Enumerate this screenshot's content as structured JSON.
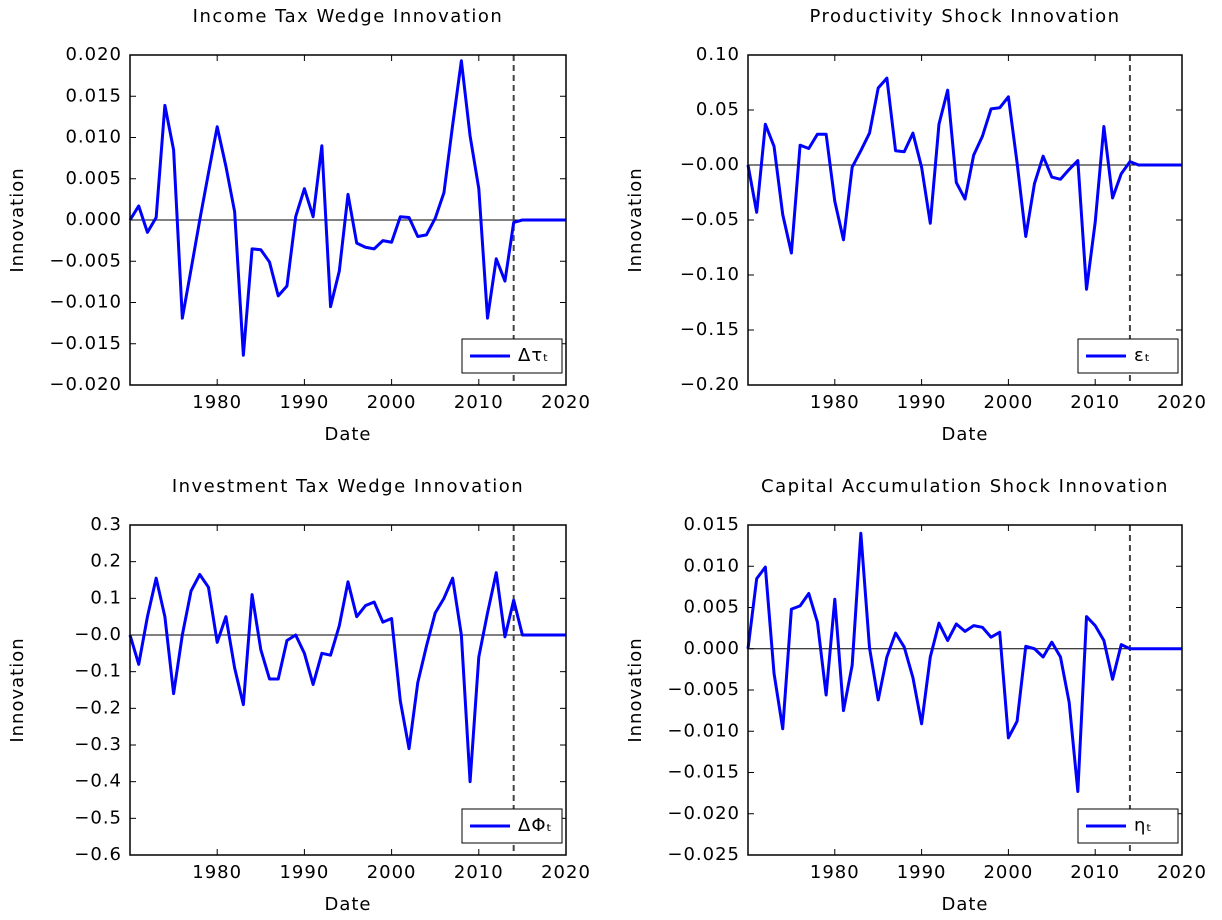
{
  "chart_data": [
    {
      "type": "line",
      "title": "Income Tax Wedge Innovation",
      "xlabel": "Date",
      "ylabel": "Innovation",
      "x": [
        1970,
        1971,
        1972,
        1973,
        1974,
        1975,
        1976,
        1977,
        1978,
        1979,
        1980,
        1981,
        1982,
        1983,
        1984,
        1985,
        1986,
        1987,
        1988,
        1989,
        1990,
        1991,
        1992,
        1993,
        1994,
        1995,
        1996,
        1997,
        1998,
        1999,
        2000,
        2001,
        2002,
        2003,
        2004,
        2005,
        2006,
        2007,
        2008,
        2009,
        2010,
        2011,
        2012,
        2013,
        2014,
        2015,
        2016,
        2017,
        2018,
        2019,
        2020
      ],
      "series": [
        {
          "name": "Δτₜ",
          "color": "#0000ff",
          "values": [
            0.0,
            0.0017,
            -0.0015,
            0.0003,
            0.0139,
            0.0085,
            -0.0119,
            -0.006,
            0.0,
            0.0057,
            0.0113,
            0.0065,
            0.001,
            -0.0164,
            -0.0035,
            -0.0036,
            -0.0051,
            -0.0092,
            -0.008,
            0.0004,
            0.0038,
            0.0004,
            0.009,
            -0.0105,
            -0.0062,
            0.0031,
            -0.0028,
            -0.0033,
            -0.0035,
            -0.0025,
            -0.0027,
            0.0004,
            0.0003,
            -0.002,
            -0.0018,
            0.0002,
            0.0033,
            0.0115,
            0.0193,
            0.0102,
            0.0038,
            -0.0119,
            -0.0047,
            -0.0074,
            -0.0003,
            0,
            0,
            0,
            0,
            0,
            0
          ]
        }
      ],
      "xlim": [
        1970,
        2020
      ],
      "xticks": [
        1980,
        1990,
        2000,
        2010,
        2020
      ],
      "ylim": [
        -0.02,
        0.02
      ],
      "yticks": [
        {
          "value": -0.02,
          "label": "−0.020"
        },
        {
          "value": -0.015,
          "label": "−0.015"
        },
        {
          "value": -0.01,
          "label": "−0.010"
        },
        {
          "value": -0.005,
          "label": "−0.005"
        },
        {
          "value": 0,
          "label": "0.000"
        },
        0.005,
        {
          "value": 0.01,
          "label": "0.010"
        },
        0.015,
        {
          "value": 0.02,
          "label": "0.020"
        }
      ],
      "hline": 0,
      "vline": 2014,
      "legend": "lower right"
    },
    {
      "type": "line",
      "title": "Productivity Shock Innovation",
      "xlabel": "Date",
      "ylabel": "Innovation",
      "x": [
        1970,
        1971,
        1972,
        1973,
        1974,
        1975,
        1976,
        1977,
        1978,
        1979,
        1980,
        1981,
        1982,
        1983,
        1984,
        1985,
        1986,
        1987,
        1988,
        1989,
        1990,
        1991,
        1992,
        1993,
        1994,
        1995,
        1996,
        1997,
        1998,
        1999,
        2000,
        2001,
        2002,
        2003,
        2004,
        2005,
        2006,
        2007,
        2008,
        2009,
        2010,
        2011,
        2012,
        2013,
        2014,
        2015,
        2016,
        2017,
        2018,
        2019,
        2020
      ],
      "series": [
        {
          "name": "εₜ",
          "color": "#0000ff",
          "values": [
            0.0,
            -0.043,
            0.037,
            0.017,
            -0.045,
            -0.08,
            0.018,
            0.015,
            0.028,
            0.028,
            -0.033,
            -0.068,
            -0.002,
            0.013,
            0.029,
            0.07,
            0.079,
            0.013,
            0.012,
            0.029,
            -0.002,
            -0.053,
            0.037,
            0.068,
            -0.016,
            -0.031,
            0.009,
            0.026,
            0.051,
            0.052,
            0.062,
            0.002,
            -0.065,
            -0.017,
            0.008,
            -0.011,
            -0.013,
            -0.004,
            0.004,
            -0.113,
            -0.052,
            0.035,
            -0.03,
            -0.008,
            0.003,
            0,
            0,
            0,
            0,
            0,
            0
          ]
        }
      ],
      "xlim": [
        1970,
        2020
      ],
      "xticks": [
        1980,
        1990,
        2000,
        2010,
        2020
      ],
      "ylim": [
        -0.2,
        0.1
      ],
      "yticks": [
        {
          "value": -0.2,
          "label": "−0.20"
        },
        {
          "value": -0.15,
          "label": "−0.15"
        },
        {
          "value": -0.1,
          "label": "−0.10"
        },
        {
          "value": -0.05,
          "label": "−0.05"
        },
        {
          "value": 0,
          "label": "−0.00"
        },
        0.05,
        {
          "value": 0.1,
          "label": "0.10"
        }
      ],
      "hline": 0,
      "vline": 2014,
      "legend": "lower right"
    },
    {
      "type": "line",
      "title": "Investment Tax Wedge Innovation",
      "xlabel": "Date",
      "ylabel": "Innovation",
      "x": [
        1970,
        1971,
        1972,
        1973,
        1974,
        1975,
        1976,
        1977,
        1978,
        1979,
        1980,
        1981,
        1982,
        1983,
        1984,
        1985,
        1986,
        1987,
        1988,
        1989,
        1990,
        1991,
        1992,
        1993,
        1994,
        1995,
        1996,
        1997,
        1998,
        1999,
        2000,
        2001,
        2002,
        2003,
        2004,
        2005,
        2006,
        2007,
        2008,
        2009,
        2010,
        2011,
        2012,
        2013,
        2014,
        2015,
        2016,
        2017,
        2018,
        2019,
        2020
      ],
      "series": [
        {
          "name": "ΔΦₜ",
          "color": "#0000ff",
          "values": [
            0.0,
            -0.08,
            0.05,
            0.155,
            0.05,
            -0.16,
            0.0,
            0.12,
            0.165,
            0.13,
            -0.02,
            0.05,
            -0.09,
            -0.19,
            0.11,
            -0.04,
            -0.12,
            -0.12,
            -0.015,
            0.0,
            -0.05,
            -0.135,
            -0.05,
            -0.055,
            0.025,
            0.145,
            0.05,
            0.08,
            0.09,
            0.035,
            0.045,
            -0.18,
            -0.31,
            -0.13,
            -0.03,
            0.06,
            0.1,
            0.155,
            0.0,
            -0.4,
            -0.06,
            0.06,
            0.17,
            -0.005,
            0.095,
            0,
            0,
            0,
            0,
            0,
            0
          ]
        }
      ],
      "xlim": [
        1970,
        2020
      ],
      "xticks": [
        1980,
        1990,
        2000,
        2010,
        2020
      ],
      "ylim": [
        -0.6,
        0.3
      ],
      "yticks": [
        {
          "value": -0.6,
          "label": "−0.6"
        },
        {
          "value": -0.5,
          "label": "−0.5"
        },
        {
          "value": -0.4,
          "label": "−0.4"
        },
        {
          "value": -0.3,
          "label": "−0.3"
        },
        {
          "value": -0.2,
          "label": "−0.2"
        },
        {
          "value": -0.1,
          "label": "−0.1"
        },
        {
          "value": 0,
          "label": "−0.0"
        },
        0.1,
        0.2,
        0.3
      ],
      "hline": 0,
      "vline": 2014,
      "legend": "lower right"
    },
    {
      "type": "line",
      "title": "Capital Accumulation Shock Innovation",
      "xlabel": "Date",
      "ylabel": "Innovation",
      "x": [
        1970,
        1971,
        1972,
        1973,
        1974,
        1975,
        1976,
        1977,
        1978,
        1979,
        1980,
        1981,
        1982,
        1983,
        1984,
        1985,
        1986,
        1987,
        1988,
        1989,
        1990,
        1991,
        1992,
        1993,
        1994,
        1995,
        1996,
        1997,
        1998,
        1999,
        2000,
        2001,
        2002,
        2003,
        2004,
        2005,
        2006,
        2007,
        2008,
        2009,
        2010,
        2011,
        2012,
        2013,
        2014,
        2015,
        2016,
        2017,
        2018,
        2019,
        2020
      ],
      "series": [
        {
          "name": "ηₜ",
          "color": "#0000ff",
          "values": [
            0.0,
            0.0085,
            0.0099,
            -0.003,
            -0.0097,
            0.0048,
            0.0052,
            0.0067,
            0.0032,
            -0.0056,
            0.006,
            -0.0075,
            -0.002,
            0.014,
            0.0001,
            -0.0062,
            -0.001,
            0.0019,
            0.0002,
            -0.0035,
            -0.0091,
            -0.001,
            0.0031,
            0.001,
            0.003,
            0.0021,
            0.0028,
            0.0026,
            0.0014,
            0.002,
            -0.0108,
            -0.0088,
            0.0003,
            0.0,
            -0.001,
            0.0008,
            -0.001,
            -0.0065,
            -0.0173,
            0.0039,
            0.0028,
            0.001,
            -0.0037,
            0.0005,
            0.0,
            0,
            0,
            0,
            0,
            0,
            0
          ]
        }
      ],
      "xlim": [
        1970,
        2020
      ],
      "xticks": [
        1980,
        1990,
        2000,
        2010,
        2020
      ],
      "ylim": [
        -0.025,
        0.015
      ],
      "yticks": [
        {
          "value": -0.025,
          "label": "−0.025"
        },
        {
          "value": -0.02,
          "label": "−0.020"
        },
        {
          "value": -0.015,
          "label": "−0.015"
        },
        {
          "value": -0.01,
          "label": "−0.010"
        },
        {
          "value": -0.005,
          "label": "−0.005"
        },
        {
          "value": 0,
          "label": "0.000"
        },
        0.005,
        {
          "value": 0.01,
          "label": "0.010"
        },
        0.015
      ],
      "hline": 0,
      "vline": 2014,
      "legend": "lower right"
    }
  ]
}
